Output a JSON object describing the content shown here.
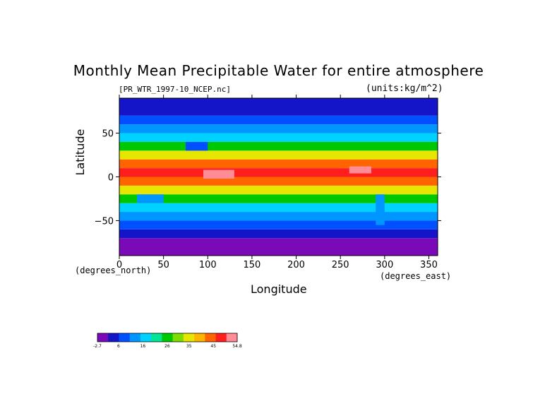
{
  "chart_data": {
    "type": "heatmap",
    "title": "Monthly Mean Precipitable Water for entire atmosphere",
    "file_label": "[PR_WTR_1997-10_NCEP.nc]",
    "units_label": "(units:kg/m^2)",
    "xlabel": "Longitude",
    "ylabel": "Latitude",
    "x_units": "(degrees_east)",
    "y_units": "(degrees_north)",
    "xlim": [
      0,
      360
    ],
    "ylim": [
      -90,
      90
    ],
    "x_ticks": [
      {
        "value": 0,
        "label": "0"
      },
      {
        "value": 50,
        "label": "50"
      },
      {
        "value": 100,
        "label": "100"
      },
      {
        "value": 150,
        "label": "150"
      },
      {
        "value": 200,
        "label": "200"
      },
      {
        "value": 250,
        "label": "250"
      },
      {
        "value": 300,
        "label": "300"
      },
      {
        "value": 350,
        "label": "350"
      }
    ],
    "y_ticks": [
      {
        "value": 50,
        "label": "50"
      },
      {
        "value": 0,
        "label": "0"
      },
      {
        "value": -50,
        "label": "−50"
      }
    ],
    "latitude_bands": [
      {
        "lat_min": -90,
        "lat_max": -70,
        "value": 1
      },
      {
        "lat_min": -70,
        "lat_max": -60,
        "value": 5
      },
      {
        "lat_min": -60,
        "lat_max": -50,
        "value": 10
      },
      {
        "lat_min": -50,
        "lat_max": -40,
        "value": 14
      },
      {
        "lat_min": -40,
        "lat_max": -30,
        "value": 19
      },
      {
        "lat_min": -30,
        "lat_max": -20,
        "value": 25
      },
      {
        "lat_min": -20,
        "lat_max": -10,
        "value": 33
      },
      {
        "lat_min": -10,
        "lat_max": 0,
        "value": 42
      },
      {
        "lat_min": 0,
        "lat_max": 10,
        "value": 48
      },
      {
        "lat_min": 10,
        "lat_max": 20,
        "value": 42
      },
      {
        "lat_min": 20,
        "lat_max": 30,
        "value": 33
      },
      {
        "lat_min": 30,
        "lat_max": 40,
        "value": 24
      },
      {
        "lat_min": 40,
        "lat_max": 50,
        "value": 17
      },
      {
        "lat_min": 50,
        "lat_max": 60,
        "value": 12
      },
      {
        "lat_min": 60,
        "lat_max": 70,
        "value": 8
      },
      {
        "lat_min": 70,
        "lat_max": 90,
        "value": 4
      }
    ],
    "anomalies": [
      {
        "lon_min": 95,
        "lon_max": 130,
        "lat_min": -2,
        "lat_max": 8,
        "value": 52
      },
      {
        "lon_min": 260,
        "lon_max": 285,
        "lat_min": 4,
        "lat_max": 12,
        "value": 52
      },
      {
        "lon_min": 290,
        "lon_max": 300,
        "lat_min": -55,
        "lat_max": -20,
        "value": 12
      },
      {
        "lon_min": 75,
        "lon_max": 100,
        "lat_min": 30,
        "lat_max": 40,
        "value": 8
      },
      {
        "lon_min": 20,
        "lon_max": 50,
        "lat_min": -30,
        "lat_max": -20,
        "value": 14
      }
    ],
    "colorbar": {
      "colors": [
        "#7a0ab8",
        "#1414c8",
        "#0050ff",
        "#0096ff",
        "#00d2ff",
        "#00e696",
        "#00c800",
        "#7ddc00",
        "#e6e600",
        "#ffb400",
        "#ff6400",
        "#ff1e1e",
        "#ff8c96"
      ],
      "labels": [
        {
          "value": -2.7,
          "label": "-2.7"
        },
        {
          "value": 6,
          "label": "6"
        },
        {
          "value": 16,
          "label": "16"
        },
        {
          "value": 26,
          "label": "26"
        },
        {
          "value": 35,
          "label": "35"
        },
        {
          "value": 45,
          "label": "45"
        },
        {
          "value": 54.8,
          "label": "54.8"
        }
      ],
      "min": -2.7,
      "max": 54.8
    }
  }
}
